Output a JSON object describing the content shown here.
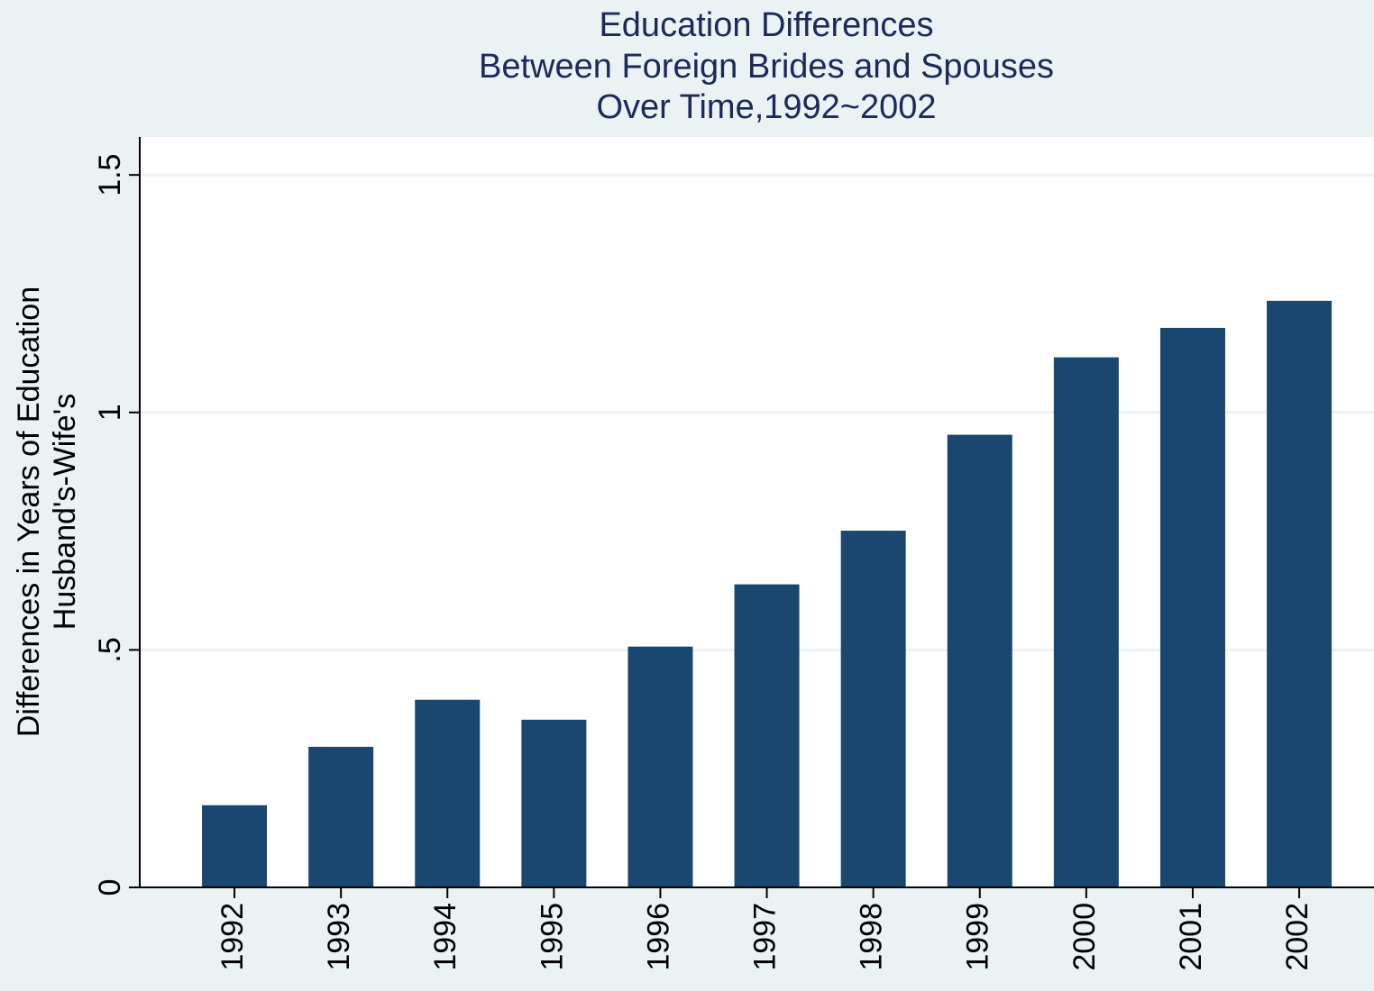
{
  "chart_data": {
    "type": "bar",
    "title": [
      "Education Differences",
      "Between Foreign Brides and Spouses",
      "Over Time,1992~2002"
    ],
    "y_label": [
      "Differences in Years of Education",
      "Husband's-Wife's"
    ],
    "categories": [
      "1992",
      "1993",
      "1994",
      "1995",
      "1996",
      "1997",
      "1998",
      "1999",
      "2000",
      "2001",
      "2002"
    ],
    "values": [
      0.173,
      0.296,
      0.395,
      0.353,
      0.507,
      0.638,
      0.751,
      0.953,
      1.116,
      1.178,
      1.235
    ],
    "color": "#1a476f",
    "ylim": [
      0,
      1.58
    ],
    "yticks": [
      0,
      {
        "value": 0.5,
        "label": ".5"
      },
      1,
      1.5
    ],
    "grid": true
  }
}
